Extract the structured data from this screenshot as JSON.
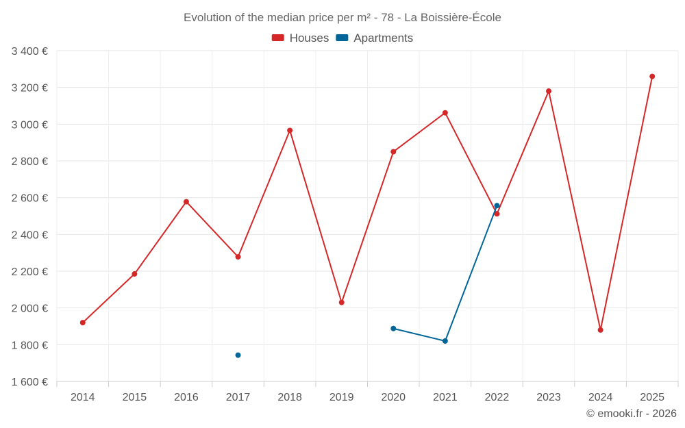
{
  "chart_data": {
    "type": "line",
    "title": "Evolution of the median price per m² - 78 - La Boissière-École",
    "categories": [
      "2014",
      "2015",
      "2016",
      "2017",
      "2018",
      "2019",
      "2020",
      "2021",
      "2022",
      "2023",
      "2024",
      "2025"
    ],
    "series": [
      {
        "name": "Houses",
        "color": "#d62728",
        "values": [
          1920,
          2185,
          2578,
          2278,
          2966,
          2030,
          2850,
          3062,
          2512,
          3180,
          1880,
          3260
        ]
      },
      {
        "name": "Apartments",
        "color": "#006699",
        "values": [
          null,
          null,
          null,
          1743,
          null,
          null,
          1888,
          1820,
          2557,
          null,
          null,
          null
        ]
      }
    ],
    "y_ticks": [
      1600,
      1800,
      2000,
      2200,
      2400,
      2600,
      2800,
      3000,
      3200,
      3400
    ],
    "y_tick_labels": [
      "1 600 €",
      "1 800 €",
      "2 000 €",
      "2 200 €",
      "2 400 €",
      "2 600 €",
      "2 800 €",
      "3 000 €",
      "3 200 €",
      "3 400 €"
    ],
    "ylim": [
      1600,
      3400
    ],
    "xlabel": "",
    "ylabel": "",
    "grid": true,
    "legend_position": "top-center",
    "credit": "© emooki.fr - 2026"
  }
}
